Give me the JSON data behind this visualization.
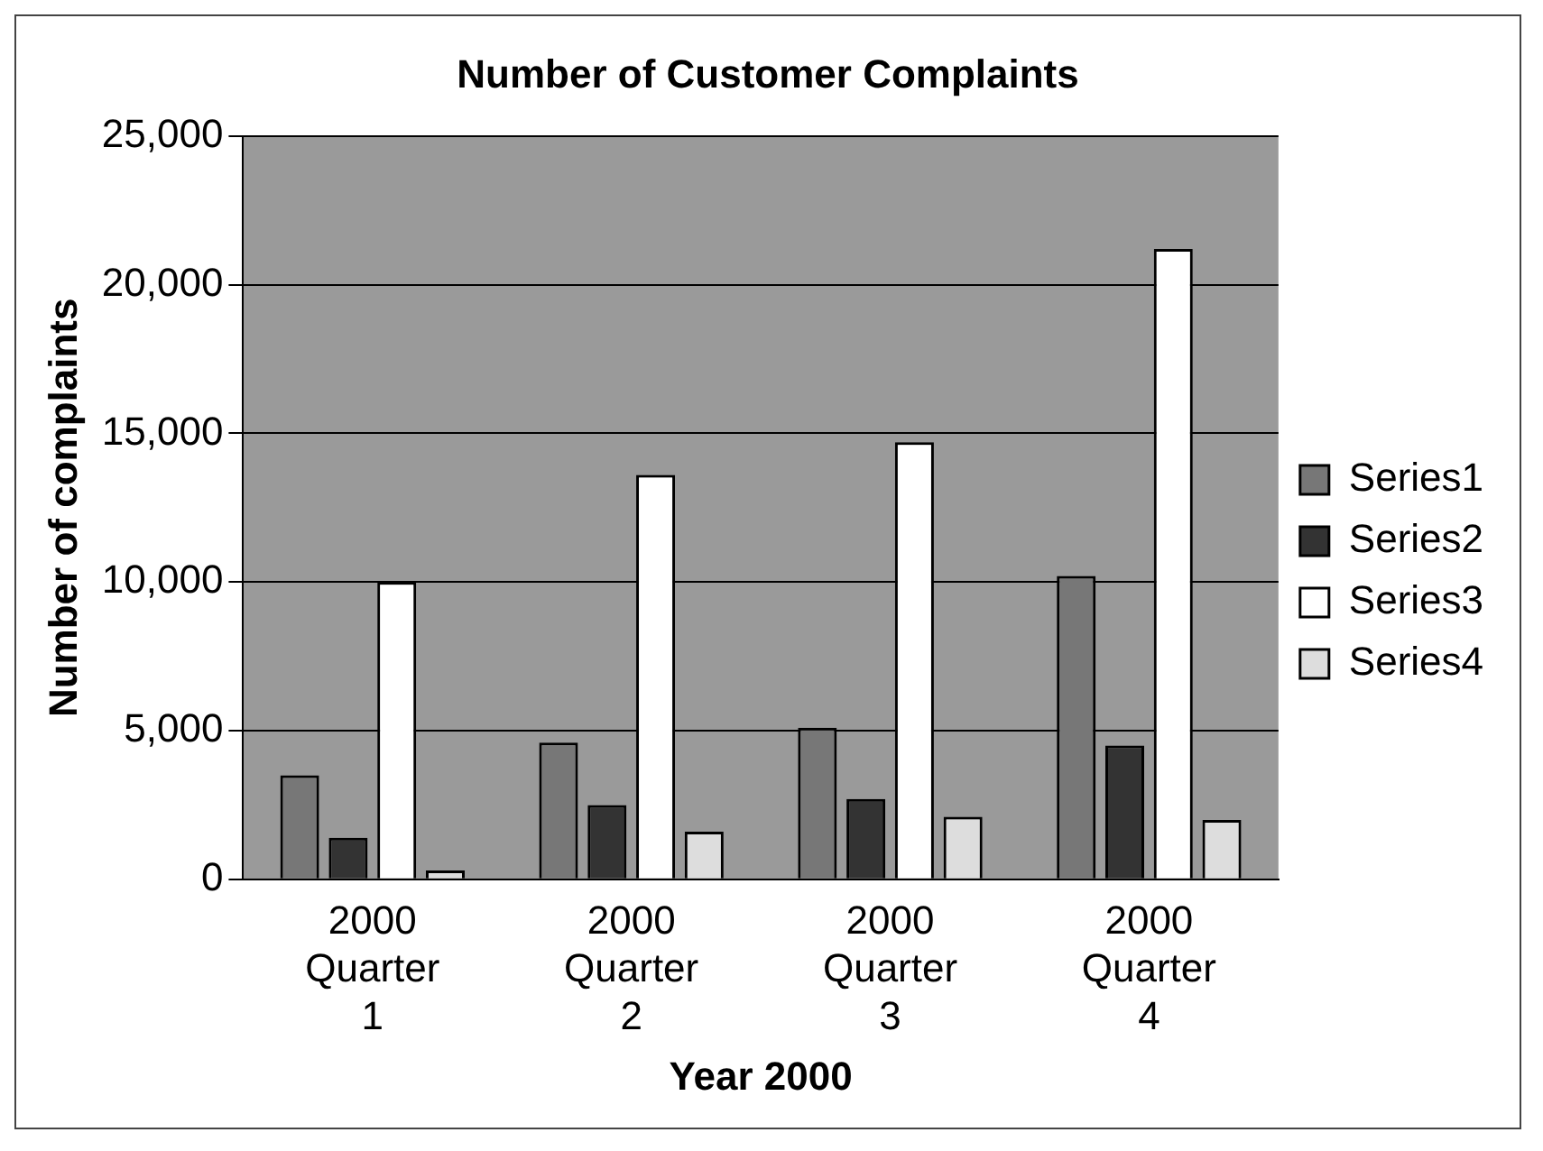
{
  "chart_data": {
    "type": "bar",
    "title": "Number of Customer Complaints",
    "xlabel": "Year 2000",
    "ylabel": "Number of complaints",
    "categories": [
      "2000 Quarter 1",
      "2000 Quarter 2",
      "2000 Quarter 3",
      "2000 Quarter 4"
    ],
    "series": [
      {
        "name": "Series1",
        "color": "#777777",
        "values": [
          3500,
          4600,
          5100,
          10200
        ]
      },
      {
        "name": "Series2",
        "color": "#333333",
        "values": [
          1400,
          2500,
          2700,
          4500
        ]
      },
      {
        "name": "Series3",
        "color": "#ffffff",
        "values": [
          10000,
          13600,
          14700,
          21200
        ]
      },
      {
        "name": "Series4",
        "color": "#dddddd",
        "values": [
          300,
          1600,
          2100,
          2000
        ]
      }
    ],
    "ylim": [
      0,
      25000
    ],
    "yticks": [
      0,
      {
        "value": 5000,
        "label": "5,000"
      },
      {
        "value": 10000,
        "label": "10,000"
      },
      {
        "value": 15000,
        "label": "15,000"
      },
      {
        "value": 20000,
        "label": "20,000"
      },
      {
        "value": 25000,
        "label": "25,000"
      }
    ],
    "grid": "y",
    "legend": "right"
  }
}
